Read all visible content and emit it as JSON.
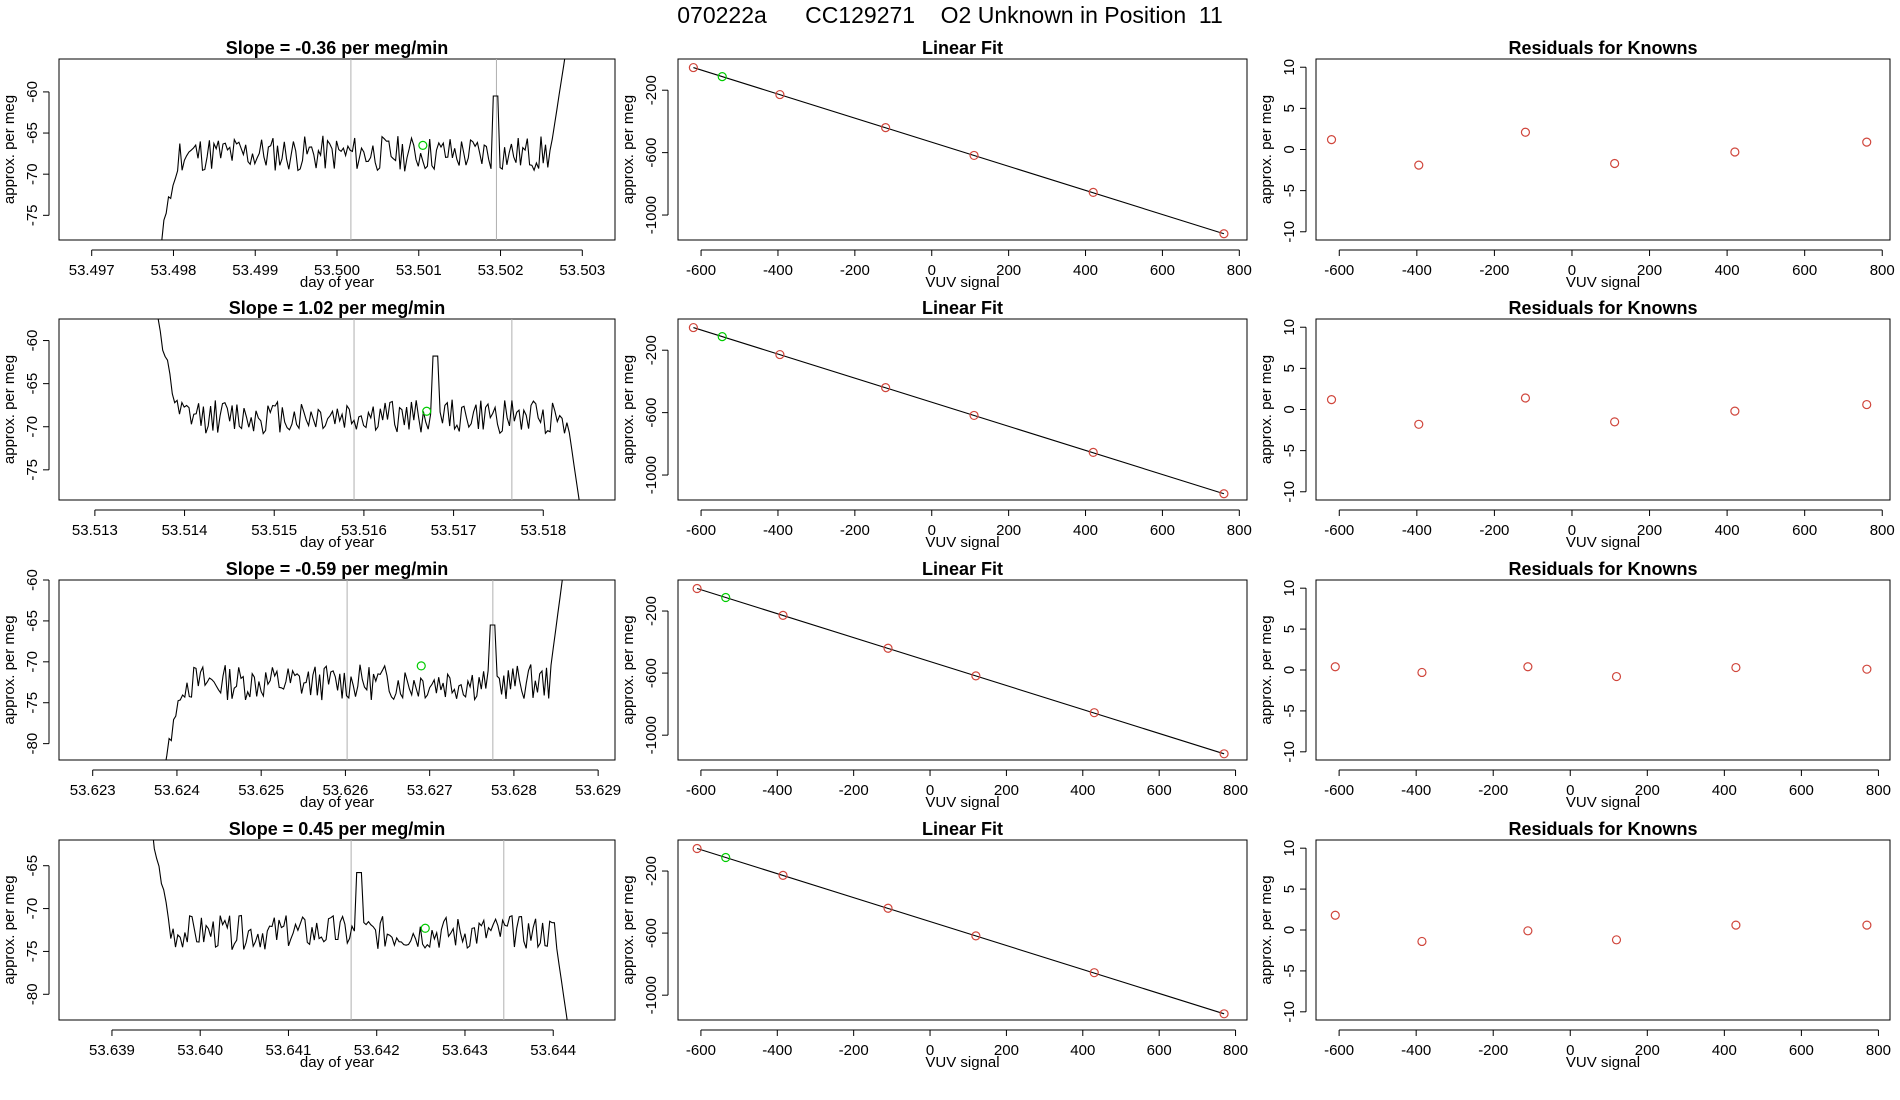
{
  "page": {
    "title": "070222a      CC129271    O2 Unknown in Position  11"
  },
  "chart_data": [
    {
      "type": "line",
      "panel": "timeseries",
      "title": "Slope =  -0.36  per meg/min",
      "xlabel": "day of year",
      "ylabel": "approx. per meg",
      "xlim": [
        53.4966,
        53.5034
      ],
      "ylim": [
        -78,
        -56
      ],
      "xticks": [
        "53.497",
        "53.498",
        "53.499",
        "53.500",
        "53.501",
        "53.502",
        "53.503"
      ],
      "yticks": [
        -75,
        -70,
        -65,
        -60
      ],
      "vlines": [
        53.50017,
        53.50195
      ],
      "start": 53.4978,
      "end": 53.5028,
      "level": -67.5,
      "noise": 2.2,
      "rise_start": -80,
      "rise_end": -55,
      "spike_at": 53.50195,
      "marker": {
        "x": 53.50105,
        "y": -66.5,
        "color": "#00cc00"
      },
      "seed": 11
    },
    {
      "type": "scatter",
      "panel": "fit",
      "title": "Linear Fit",
      "xlabel": "VUV signal",
      "ylabel": "approx. per meg",
      "xlim": [
        -660,
        820
      ],
      "ylim": [
        -1160,
        0
      ],
      "xticks": [
        -600,
        -400,
        -200,
        0,
        200,
        400,
        600,
        800
      ],
      "yticks": [
        -1000,
        -600,
        -200
      ],
      "line": [
        [
          -620,
          -55
        ],
        [
          760,
          -1120
        ]
      ],
      "points": [
        [
          -620,
          -55
        ],
        [
          -395,
          -228
        ],
        [
          -120,
          -440
        ],
        [
          110,
          -618
        ],
        [
          420,
          -855
        ],
        [
          760,
          -1120
        ]
      ],
      "unknown": [
        -545,
        -113
      ],
      "seed": 21
    },
    {
      "type": "scatter",
      "panel": "residuals",
      "title": "Residuals for Knowns",
      "xlabel": "VUV signal",
      "ylabel": "approx. per meg",
      "xlim": [
        -660,
        820
      ],
      "ylim": [
        -11,
        11
      ],
      "xticks": [
        -600,
        -400,
        -200,
        0,
        200,
        400,
        600,
        800
      ],
      "yticks": [
        -10,
        -5,
        0,
        5,
        10
      ],
      "points": [
        [
          -620,
          1.2
        ],
        [
          -395,
          -1.9
        ],
        [
          -120,
          2.1
        ],
        [
          110,
          -1.7
        ],
        [
          420,
          -0.3
        ],
        [
          760,
          0.9
        ]
      ]
    },
    {
      "type": "line",
      "panel": "timeseries",
      "title": "Slope =  1.02  per meg/min",
      "xlabel": "day of year",
      "ylabel": "approx. per meg",
      "xlim": [
        53.5126,
        53.5188
      ],
      "ylim": [
        -78.5,
        -57.5
      ],
      "xticks": [
        "53.513",
        "53.514",
        "53.515",
        "53.516",
        "53.517",
        "53.518"
      ],
      "yticks": [
        -75,
        -70,
        -65,
        -60
      ],
      "vlines": [
        53.51589,
        53.51765
      ],
      "start": 53.51365,
      "end": 53.51845,
      "level": -68.8,
      "noise": 2.0,
      "rise_start": -55,
      "rise_end": -82,
      "spike_at": 53.5168,
      "marker": {
        "x": 53.5167,
        "y": -68.2,
        "color": "#00cc00"
      },
      "seed": 12
    },
    {
      "type": "scatter",
      "panel": "fit",
      "title": "Linear Fit",
      "xlabel": "VUV signal",
      "ylabel": "approx. per meg",
      "xlim": [
        -660,
        820
      ],
      "ylim": [
        -1160,
        0
      ],
      "xticks": [
        -600,
        -400,
        -200,
        0,
        200,
        400,
        600,
        800
      ],
      "yticks": [
        -1000,
        -600,
        -200
      ],
      "line": [
        [
          -620,
          -55
        ],
        [
          760,
          -1120
        ]
      ],
      "points": [
        [
          -620,
          -55
        ],
        [
          -395,
          -228
        ],
        [
          -120,
          -440
        ],
        [
          110,
          -618
        ],
        [
          420,
          -855
        ],
        [
          760,
          -1120
        ]
      ],
      "unknown": [
        -545,
        -113
      ],
      "seed": 22
    },
    {
      "type": "scatter",
      "panel": "residuals",
      "title": "Residuals for Knowns",
      "xlabel": "VUV signal",
      "ylabel": "approx. per meg",
      "xlim": [
        -660,
        820
      ],
      "ylim": [
        -11,
        11
      ],
      "xticks": [
        -600,
        -400,
        -200,
        0,
        200,
        400,
        600,
        800
      ],
      "yticks": [
        -10,
        -5,
        0,
        5,
        10
      ],
      "points": [
        [
          -620,
          1.2
        ],
        [
          -395,
          -1.8
        ],
        [
          -120,
          1.4
        ],
        [
          110,
          -1.5
        ],
        [
          420,
          -0.2
        ],
        [
          760,
          0.6
        ]
      ]
    },
    {
      "type": "line",
      "panel": "timeseries",
      "title": "Slope =  -0.59  per meg/min",
      "xlabel": "day of year",
      "ylabel": "approx. per meg",
      "xlim": [
        53.6226,
        53.6292
      ],
      "ylim": [
        -82,
        -60
      ],
      "xticks": [
        "53.623",
        "53.624",
        "53.625",
        "53.626",
        "53.627",
        "53.628",
        "53.629"
      ],
      "yticks": [
        -80,
        -75,
        -70,
        -65,
        -60
      ],
      "vlines": [
        53.62602,
        53.62775
      ],
      "start": 53.6238,
      "end": 53.6286,
      "level": -72.5,
      "noise": 2.2,
      "rise_start": -85,
      "rise_end": -58,
      "spike_at": 53.62775,
      "marker": {
        "x": 53.6269,
        "y": -70.5,
        "color": "#00cc00"
      },
      "seed": 13
    },
    {
      "type": "scatter",
      "panel": "fit",
      "title": "Linear Fit",
      "xlabel": "VUV signal",
      "ylabel": "approx. per meg",
      "xlim": [
        -660,
        830
      ],
      "ylim": [
        -1160,
        0
      ],
      "xticks": [
        -600,
        -400,
        -200,
        0,
        200,
        400,
        600,
        800
      ],
      "yticks": [
        -1000,
        -600,
        -200
      ],
      "line": [
        [
          -610,
          -55
        ],
        [
          770,
          -1120
        ]
      ],
      "points": [
        [
          -610,
          -55
        ],
        [
          -385,
          -228
        ],
        [
          -110,
          -440
        ],
        [
          120,
          -618
        ],
        [
          430,
          -855
        ],
        [
          770,
          -1120
        ]
      ],
      "unknown": [
        -535,
        -113
      ],
      "seed": 23
    },
    {
      "type": "scatter",
      "panel": "residuals",
      "title": "Residuals for Knowns",
      "xlabel": "VUV signal",
      "ylabel": "approx. per meg",
      "xlim": [
        -660,
        830
      ],
      "ylim": [
        -11,
        11
      ],
      "xticks": [
        -600,
        -400,
        -200,
        0,
        200,
        400,
        600,
        800
      ],
      "yticks": [
        -10,
        -5,
        0,
        5,
        10
      ],
      "points": [
        [
          -610,
          0.4
        ],
        [
          -385,
          -0.3
        ],
        [
          -110,
          0.4
        ],
        [
          120,
          -0.8
        ],
        [
          430,
          0.3
        ],
        [
          770,
          0.1
        ]
      ]
    },
    {
      "type": "line",
      "panel": "timeseries",
      "title": "Slope =  0.45  per meg/min",
      "xlabel": "day of year",
      "ylabel": "approx. per meg",
      "xlim": [
        53.6384,
        53.6447
      ],
      "ylim": [
        -83,
        -62
      ],
      "xticks": [
        "53.639",
        "53.640",
        "53.641",
        "53.642",
        "53.643",
        "53.644"
      ],
      "yticks": [
        -80,
        -75,
        -70,
        -65
      ],
      "vlines": [
        53.64171,
        53.64344
      ],
      "start": 53.6394,
      "end": 53.6442,
      "level": -72.8,
      "noise": 2.0,
      "rise_start": -58,
      "rise_end": -86,
      "spike_at": 53.6418,
      "marker": {
        "x": 53.64255,
        "y": -72.3,
        "color": "#00cc00"
      },
      "seed": 14
    },
    {
      "type": "scatter",
      "panel": "fit",
      "title": "Linear Fit",
      "xlabel": "VUV signal",
      "ylabel": "approx. per meg",
      "xlim": [
        -660,
        830
      ],
      "ylim": [
        -1160,
        0
      ],
      "xticks": [
        -600,
        -400,
        -200,
        0,
        200,
        400,
        600,
        800
      ],
      "yticks": [
        -1000,
        -600,
        -200
      ],
      "line": [
        [
          -610,
          -55
        ],
        [
          770,
          -1120
        ]
      ],
      "points": [
        [
          -610,
          -55
        ],
        [
          -385,
          -228
        ],
        [
          -110,
          -440
        ],
        [
          120,
          -618
        ],
        [
          430,
          -855
        ],
        [
          770,
          -1120
        ]
      ],
      "unknown": [
        -535,
        -113
      ],
      "seed": 24
    },
    {
      "type": "scatter",
      "panel": "residuals",
      "title": "Residuals for Knowns",
      "xlabel": "VUV signal",
      "ylabel": "approx. per meg",
      "xlim": [
        -660,
        830
      ],
      "ylim": [
        -11,
        11
      ],
      "xticks": [
        -600,
        -400,
        -200,
        0,
        200,
        400,
        600,
        800
      ],
      "yticks": [
        -10,
        -5,
        0,
        5,
        10
      ],
      "points": [
        [
          -610,
          1.8
        ],
        [
          -385,
          -1.4
        ],
        [
          -110,
          -0.1
        ],
        [
          120,
          -1.2
        ],
        [
          430,
          0.6
        ],
        [
          770,
          0.6
        ]
      ]
    }
  ]
}
